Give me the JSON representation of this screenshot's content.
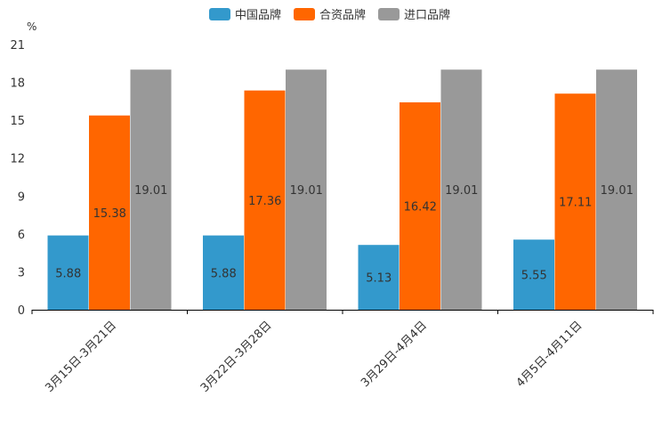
{
  "chart_data": {
    "type": "bar",
    "title": "",
    "xlabel": "",
    "ylabel": "%",
    "ylim": [
      0,
      21
    ],
    "yticks": [
      "0",
      "3",
      "6",
      "9",
      "12",
      "15",
      "18",
      "21"
    ],
    "ytick_values": [
      0,
      3,
      6,
      9,
      12,
      15,
      18,
      21
    ],
    "categories": [
      "3月15日-3月21日",
      "3月22日-3月28日",
      "3月29日-4月4日",
      "4月5日-4月11日"
    ],
    "series": [
      {
        "name": "中国品牌",
        "color": "#3399cc",
        "values": [
          5.88,
          5.88,
          5.13,
          5.55
        ]
      },
      {
        "name": "合资品牌",
        "color": "#ff6600",
        "values": [
          15.38,
          17.36,
          16.42,
          17.11
        ]
      },
      {
        "name": "进口品牌",
        "color": "#999999",
        "values": [
          19.01,
          19.01,
          19.01,
          19.01
        ]
      }
    ],
    "legend_position": "top-center",
    "grid": false
  }
}
